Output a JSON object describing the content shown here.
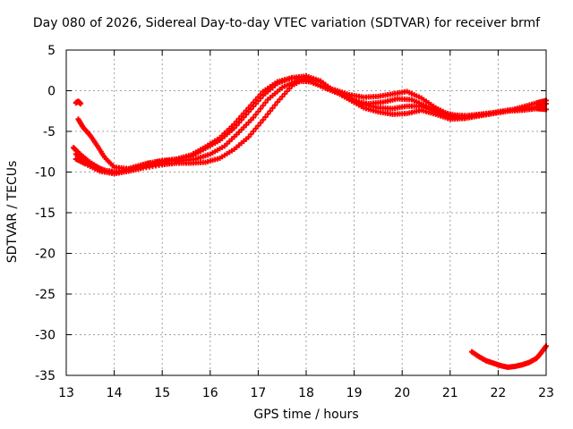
{
  "chart_data": {
    "type": "scatter",
    "title": "Day 080 of 2026, Sidereal Day-to-day VTEC variation (SDTVAR) for receiver brmf",
    "xlabel": "GPS time / hours",
    "ylabel": "SDTVAR / TECUs",
    "xlim": [
      13,
      23
    ],
    "ylim": [
      -35,
      5
    ],
    "xticks": [
      13,
      14,
      15,
      16,
      17,
      18,
      19,
      20,
      21,
      22,
      23
    ],
    "yticks": [
      5,
      0,
      -5,
      -10,
      -15,
      -20,
      -25,
      -30,
      -35
    ],
    "grid": true,
    "marker": "+",
    "color": "#ff0000",
    "series": [
      {
        "name": "track-a",
        "x": [
          13.15,
          13.25,
          13.45,
          13.7,
          14.0,
          14.3,
          14.6,
          15.0,
          15.3,
          15.6,
          15.9,
          16.2,
          16.5,
          16.8,
          17.1,
          17.4,
          17.7,
          18.0,
          18.3,
          18.6,
          18.9,
          19.2,
          19.5,
          19.8,
          20.1,
          20.4,
          20.7,
          21.0,
          21.3,
          21.6,
          21.9,
          22.2,
          22.5,
          22.8,
          23.0
        ],
        "y": [
          -7.0,
          -7.6,
          -8.6,
          -9.6,
          -10.1,
          -9.6,
          -9.1,
          -8.6,
          -8.4,
          -8.1,
          -7.1,
          -6.1,
          -4.6,
          -2.6,
          -0.6,
          0.9,
          1.6,
          1.3,
          0.6,
          0.1,
          -0.5,
          -0.8,
          -0.7,
          -0.4,
          -0.1,
          -0.9,
          -2.1,
          -3.0,
          -3.1,
          -2.9,
          -2.7,
          -2.4,
          -2.2,
          -2.0,
          -1.6
        ]
      },
      {
        "name": "track-b",
        "x": [
          13.2,
          13.35,
          13.55,
          13.8,
          14.1,
          14.4,
          14.7,
          15.0,
          15.4,
          15.7,
          16.0,
          16.3,
          16.6,
          16.9,
          17.2,
          17.5,
          17.8,
          18.1,
          18.4,
          18.7,
          19.0,
          19.3,
          19.6,
          19.9,
          20.2,
          20.5,
          20.8,
          21.1,
          21.4,
          21.7,
          22.0,
          22.3,
          22.6,
          22.9
        ],
        "y": [
          -7.8,
          -8.4,
          -9.1,
          -9.8,
          -10.0,
          -9.4,
          -8.9,
          -8.6,
          -8.6,
          -8.4,
          -7.8,
          -6.8,
          -5.1,
          -3.3,
          -1.1,
          0.4,
          1.2,
          1.1,
          0.3,
          -0.4,
          -1.3,
          -1.6,
          -1.4,
          -1.0,
          -1.1,
          -1.9,
          -2.6,
          -3.0,
          -3.1,
          -2.9,
          -2.6,
          -2.4,
          -2.3,
          -2.1
        ]
      },
      {
        "name": "track-c",
        "x": [
          13.2,
          13.4,
          13.7,
          14.0,
          14.3,
          14.6,
          15.0,
          15.3,
          15.6,
          15.9,
          16.2,
          16.5,
          16.8,
          17.1,
          17.4,
          17.7,
          18.0,
          18.3,
          18.6,
          18.9,
          19.2,
          19.5,
          19.8,
          20.1,
          20.4,
          20.7,
          21.0,
          21.3,
          21.6,
          21.9,
          22.2,
          22.5,
          22.8,
          23.0
        ],
        "y": [
          -8.4,
          -9.0,
          -9.9,
          -10.2,
          -9.9,
          -9.5,
          -9.1,
          -8.9,
          -8.9,
          -8.8,
          -8.3,
          -7.2,
          -5.7,
          -3.6,
          -1.4,
          0.6,
          1.6,
          1.1,
          -0.1,
          -0.8,
          -1.7,
          -2.1,
          -2.2,
          -1.9,
          -1.9,
          -2.6,
          -3.2,
          -3.4,
          -3.0,
          -2.8,
          -2.5,
          -2.4,
          -2.2,
          -2.3
        ]
      },
      {
        "name": "track-d",
        "x": [
          13.25,
          13.35,
          13.5,
          13.65,
          13.8,
          14.0,
          14.3,
          14.6,
          15.0,
          15.3,
          15.6,
          15.9,
          16.2,
          16.5,
          16.8,
          17.1,
          17.4,
          17.7,
          18.0,
          18.3,
          18.6,
          18.9,
          19.2,
          19.5,
          19.8,
          20.1,
          20.4,
          20.7,
          21.0,
          21.3,
          21.6,
          21.9,
          22.2,
          22.5,
          22.8,
          23.0
        ],
        "y": [
          -3.5,
          -4.5,
          -5.5,
          -6.8,
          -8.2,
          -9.4,
          -9.6,
          -9.3,
          -8.8,
          -8.4,
          -7.9,
          -6.9,
          -5.8,
          -4.1,
          -2.1,
          -0.1,
          1.1,
          1.6,
          1.8,
          1.2,
          -0.1,
          -1.1,
          -2.1,
          -2.6,
          -2.9,
          -2.8,
          -2.4,
          -2.9,
          -3.5,
          -3.4,
          -3.1,
          -2.8,
          -2.5,
          -2.0,
          -1.5,
          -1.2
        ]
      },
      {
        "name": "track-e",
        "x": [
          21.45,
          21.6,
          21.75,
          21.9,
          22.05,
          22.2,
          22.35,
          22.5,
          22.65,
          22.8,
          22.9,
          23.0
        ],
        "y": [
          -32.1,
          -32.7,
          -33.2,
          -33.5,
          -33.8,
          -34.0,
          -33.9,
          -33.7,
          -33.4,
          -32.9,
          -32.2,
          -31.4
        ]
      },
      {
        "name": "track-f",
        "x": [
          13.2,
          13.25,
          13.3
        ],
        "y": [
          -1.5,
          -1.3,
          -1.6
        ]
      }
    ]
  }
}
